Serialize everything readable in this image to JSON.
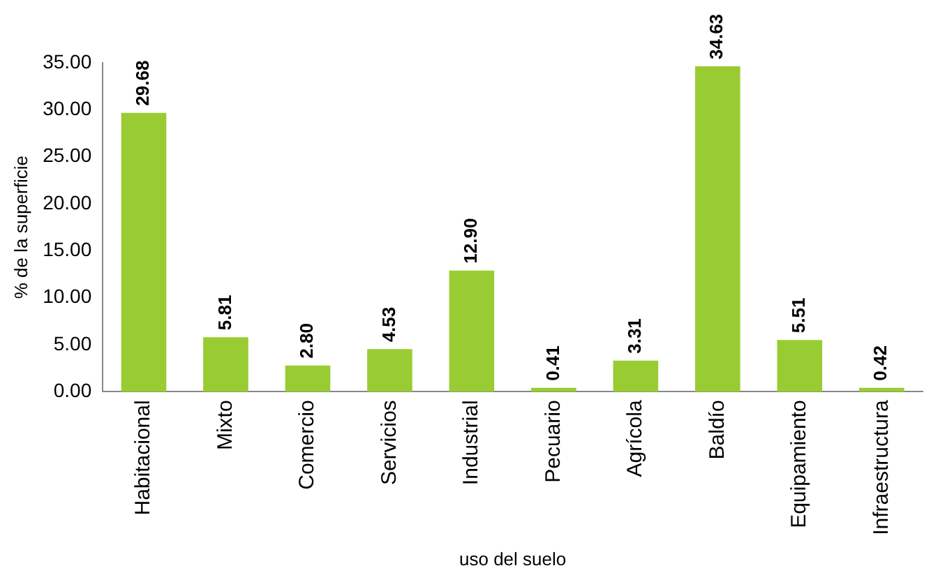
{
  "chart_data": {
    "type": "bar",
    "xlabel": "uso del suelo",
    "ylabel": "% de la superficie",
    "categories": [
      "Habitacional",
      "Mixto",
      "Comercio",
      "Servicios",
      "Industrial",
      "Pecuario",
      "Agrícola",
      "Baldío",
      "Equipamiento",
      "Infraestructura"
    ],
    "values": [
      29.68,
      5.81,
      2.8,
      4.53,
      12.9,
      0.41,
      3.31,
      34.63,
      5.51,
      0.42
    ],
    "value_labels": [
      "29.68",
      "5.81",
      "2.80",
      "4.53",
      "12.90",
      "0.41",
      "3.31",
      "34.63",
      "5.51",
      "0.42"
    ],
    "color": "#99cc33",
    "ylim": [
      0,
      35
    ],
    "yticks": [
      {
        "value": 0,
        "label": "0.00"
      },
      {
        "value": 5,
        "label": "5.00"
      },
      {
        "value": 10,
        "label": "10.00"
      },
      {
        "value": 15,
        "label": "15.00"
      },
      {
        "value": 20,
        "label": "20.00"
      },
      {
        "value": 25,
        "label": "25.00"
      },
      {
        "value": 30,
        "label": "30.00"
      },
      {
        "value": 35,
        "label": "35.00"
      }
    ],
    "grid": false,
    "legend": false
  }
}
